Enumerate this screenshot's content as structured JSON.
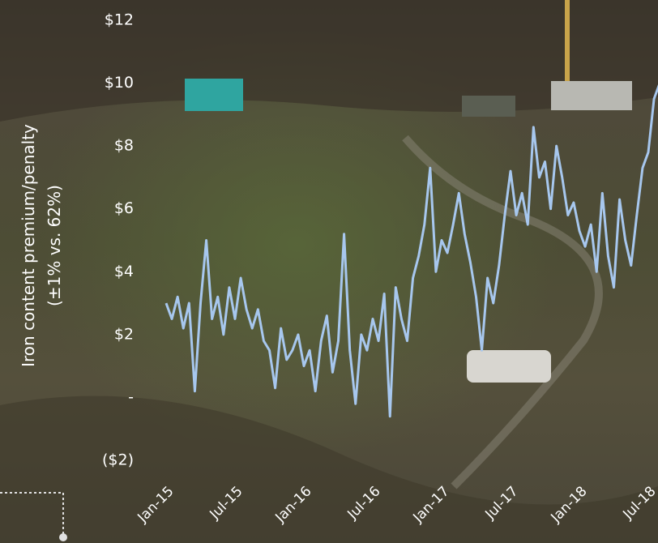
{
  "chart_data": {
    "type": "line",
    "y_label": [
      "Iron content premium/penalty",
      "(±1% vs. 62%)"
    ],
    "categories": [
      "Jan-15",
      null,
      null,
      null,
      null,
      null,
      null,
      null,
      null,
      null,
      null,
      null,
      "Jul-15",
      null,
      null,
      null,
      null,
      null,
      null,
      null,
      null,
      null,
      null,
      null,
      "Jan-16",
      null,
      null,
      null,
      null,
      null,
      null,
      null,
      null,
      null,
      null,
      null,
      "Jul-16",
      null,
      null,
      null,
      null,
      null,
      null,
      null,
      null,
      null,
      null,
      null,
      "Jan-17",
      null,
      null,
      null,
      null,
      null,
      null,
      null,
      null,
      null,
      null,
      null,
      "Jul-17",
      null,
      null,
      null,
      null,
      null,
      null,
      null,
      null,
      null,
      null,
      null,
      "Jan-18",
      null,
      null,
      null,
      null,
      null,
      null,
      null,
      null,
      null,
      null,
      null,
      "Jul-18",
      null,
      null
    ],
    "values": [
      3.0,
      2.5,
      3.2,
      2.2,
      3.0,
      0.2,
      3.0,
      5.0,
      2.5,
      3.2,
      2.0,
      3.5,
      2.5,
      3.8,
      2.8,
      2.2,
      2.8,
      1.8,
      1.5,
      0.3,
      2.2,
      1.2,
      1.5,
      2.0,
      1.0,
      1.5,
      0.2,
      1.8,
      2.6,
      0.8,
      1.8,
      5.2,
      1.5,
      -0.2,
      2.0,
      1.5,
      2.5,
      1.8,
      3.3,
      -0.6,
      3.5,
      2.5,
      1.8,
      3.8,
      4.5,
      5.5,
      7.3,
      4.0,
      5.0,
      4.6,
      5.5,
      6.5,
      5.2,
      4.3,
      3.2,
      1.5,
      3.8,
      3.0,
      4.2,
      5.8,
      7.2,
      5.8,
      6.5,
      5.5,
      8.6,
      7.0,
      7.5,
      6.0,
      8.0,
      7.0,
      5.8,
      6.2,
      5.3,
      4.8,
      5.5,
      4.0,
      6.5,
      4.5,
      3.5,
      6.3,
      5.0,
      4.2,
      5.8,
      7.3,
      7.8,
      9.5,
      10.0
    ],
    "color": "#a7c7ee",
    "ylim": [
      -2,
      12
    ],
    "yticks": [
      {
        "value": -2,
        "label": "($2)"
      },
      {
        "value": 0,
        "label": "-"
      },
      {
        "value": 2,
        "label": "$2"
      },
      {
        "value": 4,
        "label": "$4"
      },
      {
        "value": 6,
        "label": "$6"
      },
      {
        "value": 8,
        "label": "$8"
      },
      {
        "value": 10,
        "label": "$10"
      },
      {
        "value": 12,
        "label": "$12"
      }
    ],
    "grid": false
  }
}
